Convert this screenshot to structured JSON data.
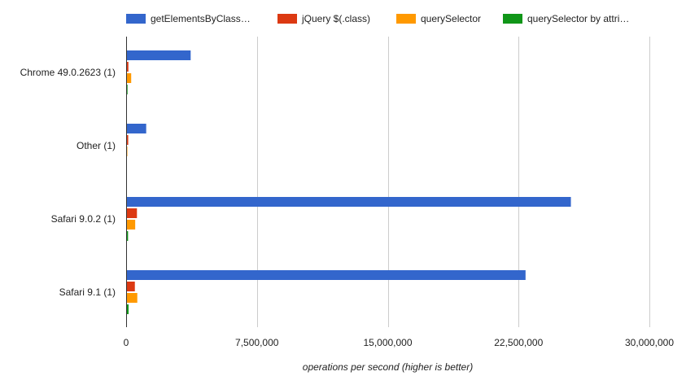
{
  "chart_data": {
    "type": "bar",
    "orientation": "horizontal",
    "categories": [
      "Chrome 49.0.2623 (1)",
      "Other (1)",
      "Safari 9.0.2 (1)",
      "Safari 9.1 (1)"
    ],
    "series": [
      {
        "name": "getElementsByClass…",
        "color": "#3366cc",
        "values": [
          3700000,
          1150000,
          25500000,
          22900000
        ]
      },
      {
        "name": "jQuery $(.class)",
        "color": "#dc3912",
        "values": [
          130000,
          120000,
          620000,
          500000
        ]
      },
      {
        "name": "querySelector",
        "color": "#ff9900",
        "values": [
          290000,
          70000,
          520000,
          640000
        ]
      },
      {
        "name": "querySelector by attri…",
        "color": "#109618",
        "values": [
          80000,
          10000,
          110000,
          140000
        ]
      }
    ],
    "xlim": [
      0,
      30000000
    ],
    "xticks": [
      0,
      7500000,
      15000000,
      22500000,
      30000000
    ],
    "xtick_labels": [
      "0",
      "7,500,000",
      "15,000,000",
      "22,500,000",
      "30,000,000"
    ],
    "xlabel": "operations per second (higher is better)",
    "ylabel": "",
    "grid": true,
    "legend_position": "top"
  }
}
